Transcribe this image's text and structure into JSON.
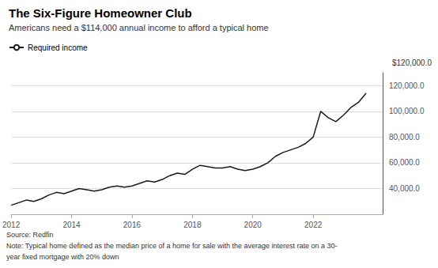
{
  "chart_data": {
    "type": "line",
    "title": "The Six-Figure Homeowner Club",
    "subtitle": "Americans need a $114,000 annual income to afford a typical home",
    "annotation": "$120,000.0",
    "notes": [
      "Source: Redfin",
      "Note: Typical home defined as the median price of a home for sale with the average interest rate on a 30-",
      "year fixed mortgage with 20% down"
    ],
    "x": [
      2012.0,
      2012.25,
      2012.5,
      2012.75,
      2013.0,
      2013.25,
      2013.5,
      2013.75,
      2014.0,
      2014.25,
      2014.5,
      2014.75,
      2015.0,
      2015.25,
      2015.5,
      2015.75,
      2016.0,
      2016.25,
      2016.5,
      2016.75,
      2017.0,
      2017.25,
      2017.5,
      2017.75,
      2018.0,
      2018.25,
      2018.5,
      2018.75,
      2019.0,
      2019.25,
      2019.5,
      2019.75,
      2020.0,
      2020.25,
      2020.5,
      2020.75,
      2021.0,
      2021.25,
      2021.5,
      2021.75,
      2022.0,
      2022.25,
      2022.5,
      2022.75,
      2023.0,
      2023.25,
      2023.5,
      2023.75
    ],
    "series": [
      {
        "name": "Required income",
        "color": "#1a1a1a",
        "values": [
          27000,
          29000,
          31000,
          30000,
          32000,
          35000,
          37000,
          36000,
          38000,
          40000,
          39000,
          38000,
          39000,
          41000,
          42000,
          41000,
          42000,
          44000,
          46000,
          45000,
          47000,
          50000,
          52000,
          51000,
          55000,
          58000,
          57000,
          56000,
          56000,
          57000,
          55000,
          54000,
          55000,
          57000,
          60000,
          65000,
          68000,
          70000,
          72000,
          75000,
          80000,
          100000,
          95000,
          92000,
          97000,
          103000,
          107000,
          114000
        ]
      }
    ],
    "xlim": [
      2012,
      2024.3
    ],
    "xticks": [
      2012,
      2014,
      2016,
      2018,
      2020,
      2022
    ],
    "ylim": [
      20000,
      130000
    ],
    "yticks": [
      {
        "value": 40000,
        "label": "40,000.0"
      },
      {
        "value": 60000,
        "label": "60,000.0"
      },
      {
        "value": 80000,
        "label": "80,000.0"
      },
      {
        "value": 100000,
        "label": "100,000.0"
      },
      {
        "value": 120000,
        "label": "120,000.0"
      }
    ],
    "grid": true,
    "legend": "upper left"
  }
}
